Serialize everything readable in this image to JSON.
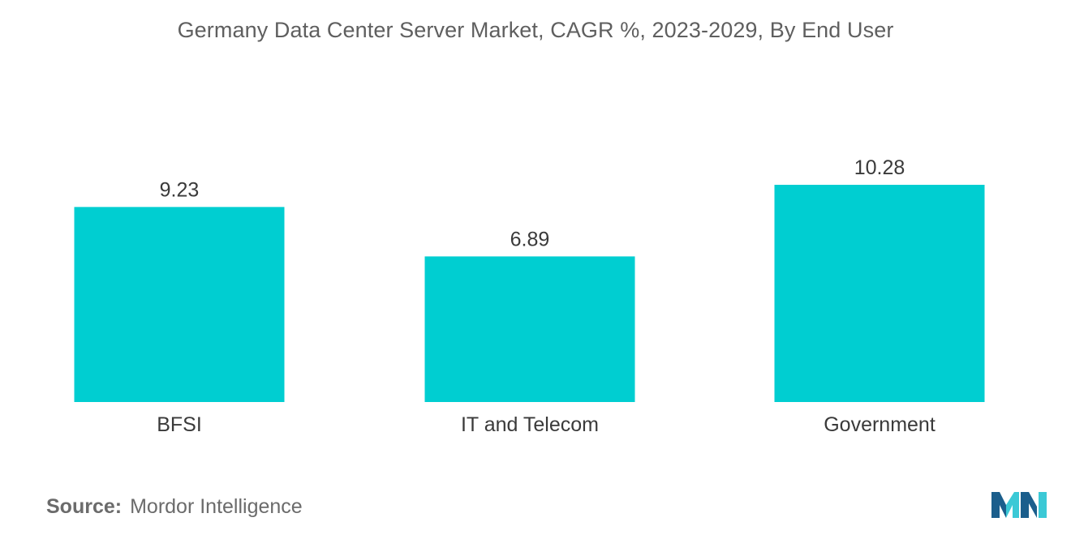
{
  "chart_data": {
    "type": "bar",
    "title": "Germany Data Center Server Market, CAGR %, 2023-2029, By End User",
    "categories": [
      "BFSI",
      "IT and Telecom",
      "Government"
    ],
    "values": [
      9.23,
      6.89,
      10.28
    ],
    "value_labels": [
      "9.23",
      "6.89",
      "10.28"
    ],
    "xlabel": "",
    "ylabel": "",
    "ylim": [
      0,
      10.28
    ],
    "grid": false,
    "bar_color": "#00CED1"
  },
  "footer": {
    "source_label": "Source:",
    "source_value": "Mordor Intelligence"
  },
  "logo": {
    "icon": "mordor-intelligence-logo",
    "color_dark": "#1B5E8C",
    "color_light": "#3BC9D6"
  }
}
